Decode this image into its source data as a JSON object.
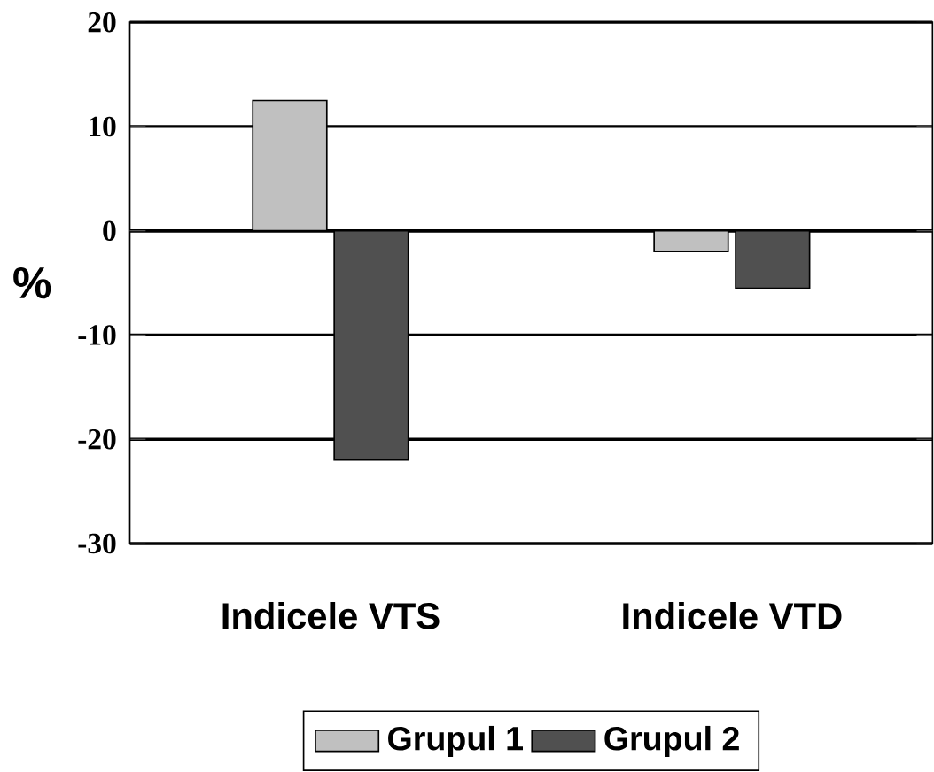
{
  "chart_data": {
    "type": "bar",
    "categories": [
      "Indicele VTS",
      "Indicele VTD"
    ],
    "ylabel": "%",
    "series": [
      {
        "name": "Grupul 1",
        "color": "#c0c0c0",
        "values": [
          12.5,
          -2
        ]
      },
      {
        "name": "Grupul 2",
        "color": "#505050",
        "values": [
          -22,
          -5.5
        ]
      }
    ],
    "ylim": [
      -30,
      20
    ],
    "yticks": [
      -30,
      -20,
      -10,
      0,
      10,
      20
    ],
    "grid": "y",
    "legend": "bottom"
  }
}
